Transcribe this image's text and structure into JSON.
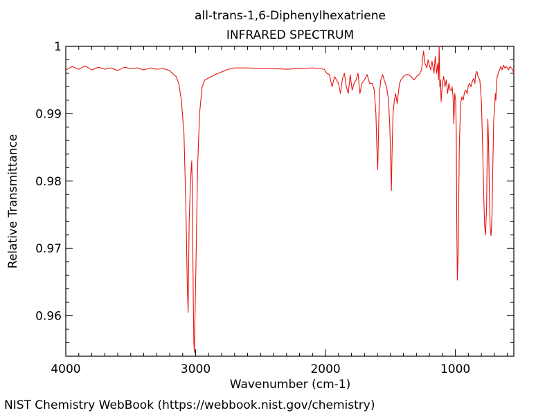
{
  "chart_data": {
    "type": "line",
    "title": "all-trans-1,6-Diphenylhexatriene",
    "subtitle": "INFRARED SPECTRUM",
    "xlabel": "Wavenumber (cm-1)",
    "ylabel": "Relative Transmittance",
    "xlim": [
      4000,
      550
    ],
    "ylim": [
      0.954,
      1.0
    ],
    "x_reversed": true,
    "grid": false,
    "line_color": "#e8120c",
    "x_ticks": [
      {
        "value": 4000,
        "label": "4000"
      },
      {
        "value": 3000,
        "label": "3000"
      },
      {
        "value": 2000,
        "label": "2000"
      },
      {
        "value": 1000,
        "label": "1000"
      }
    ],
    "y_ticks": [
      {
        "value": 1.0,
        "label": "1"
      },
      {
        "value": 0.99,
        "label": "0.99"
      },
      {
        "value": 0.98,
        "label": "0.98"
      },
      {
        "value": 0.97,
        "label": "0.97"
      },
      {
        "value": 0.96,
        "label": "0.96"
      }
    ],
    "series": [
      {
        "x": [
          4000,
          3950,
          3900,
          3850,
          3800,
          3750,
          3700,
          3650,
          3600,
          3550,
          3500,
          3450,
          3400,
          3350,
          3300,
          3250,
          3200,
          3180,
          3150,
          3130,
          3110,
          3090,
          3075,
          3065,
          3058,
          3050,
          3040,
          3030,
          3026,
          3022,
          3018,
          3014,
          3010,
          3000,
          2985,
          2970,
          2950,
          2930,
          2900,
          2850,
          2800,
          2750,
          2700,
          2600,
          2500,
          2400,
          2300,
          2200,
          2100,
          2050,
          2010,
          1990,
          1970,
          1950,
          1930,
          1915,
          1900,
          1885,
          1870,
          1855,
          1840,
          1825,
          1810,
          1795,
          1780,
          1765,
          1750,
          1735,
          1720,
          1700,
          1680,
          1660,
          1640,
          1625,
          1612,
          1605,
          1598,
          1592,
          1585,
          1575,
          1560,
          1545,
          1530,
          1515,
          1505,
          1498,
          1493,
          1488,
          1480,
          1470,
          1460,
          1448,
          1440,
          1430,
          1420,
          1400,
          1380,
          1360,
          1340,
          1320,
          1300,
          1280,
          1260,
          1250,
          1245,
          1235,
          1220,
          1210,
          1200,
          1190,
          1180,
          1165,
          1155,
          1145,
          1135,
          1130,
          1125,
          1120,
          1115,
          1110,
          1100,
          1090,
          1080,
          1070,
          1060,
          1050,
          1040,
          1030,
          1025,
          1018,
          1012,
          1005,
          998,
          993,
          990,
          985,
          978,
          970,
          960,
          950,
          940,
          930,
          920,
          910,
          900,
          890,
          880,
          870,
          860,
          850,
          845,
          835,
          825,
          812,
          800,
          790,
          782,
          775,
          768,
          760,
          755,
          750,
          745,
          738,
          732,
          725,
          718,
          711,
          705,
          698,
          692,
          688,
          684,
          678,
          670,
          660,
          650,
          640,
          630,
          620,
          610,
          600,
          590,
          580,
          570,
          560,
          550
        ],
        "y": [
          0.9965,
          0.997,
          0.9966,
          0.9971,
          0.9965,
          0.9969,
          0.9966,
          0.9968,
          0.9964,
          0.9969,
          0.9967,
          0.9968,
          0.9965,
          0.9968,
          0.9966,
          0.9967,
          0.9964,
          0.996,
          0.9955,
          0.9945,
          0.992,
          0.987,
          0.976,
          0.965,
          0.9605,
          0.974,
          0.98,
          0.983,
          0.979,
          0.97,
          0.962,
          0.956,
          0.9545,
          0.965,
          0.982,
          0.99,
          0.994,
          0.995,
          0.9953,
          0.9958,
          0.9962,
          0.9966,
          0.9968,
          0.9968,
          0.9967,
          0.9967,
          0.9966,
          0.9967,
          0.9968,
          0.9967,
          0.9966,
          0.996,
          0.9958,
          0.994,
          0.9955,
          0.995,
          0.9945,
          0.993,
          0.9952,
          0.996,
          0.994,
          0.993,
          0.9958,
          0.9935,
          0.9945,
          0.995,
          0.996,
          0.993,
          0.9945,
          0.995,
          0.9958,
          0.9945,
          0.9945,
          0.9935,
          0.99,
          0.985,
          0.9817,
          0.987,
          0.993,
          0.995,
          0.9958,
          0.9948,
          0.994,
          0.992,
          0.988,
          0.983,
          0.9786,
          0.984,
          0.99,
          0.992,
          0.993,
          0.9915,
          0.993,
          0.9945,
          0.995,
          0.9955,
          0.9958,
          0.9958,
          0.9955,
          0.995,
          0.9955,
          0.9958,
          0.9965,
          0.9985,
          0.9993,
          0.9975,
          0.9968,
          0.998,
          0.9972,
          0.9965,
          0.9978,
          0.996,
          0.9985,
          0.996,
          0.9975,
          0.995,
          1.0,
          0.994,
          0.995,
          0.9918,
          0.9945,
          0.9955,
          0.994,
          0.995,
          0.993,
          0.9945,
          0.9935,
          0.9935,
          0.994,
          0.9925,
          0.9885,
          0.993,
          0.992,
          0.987,
          0.975,
          0.9653,
          0.97,
          0.985,
          0.9915,
          0.9925,
          0.992,
          0.9932,
          0.9935,
          0.993,
          0.9942,
          0.9945,
          0.994,
          0.9948,
          0.9952,
          0.9945,
          0.9958,
          0.9963,
          0.9955,
          0.995,
          0.992,
          0.985,
          0.978,
          0.9735,
          0.972,
          0.976,
          0.984,
          0.9892,
          0.986,
          0.978,
          0.973,
          0.9719,
          0.975,
          0.983,
          0.989,
          0.991,
          0.993,
          0.992,
          0.9945,
          0.9955,
          0.996,
          0.9965,
          0.997,
          0.9965,
          0.9972,
          0.9968,
          0.997,
          0.9968,
          0.9965,
          0.997,
          0.9968,
          0.9966,
          0.996
        ]
      }
    ]
  },
  "footer": {
    "credit": "NIST Chemistry WebBook (https://webbook.nist.gov/chemistry)"
  }
}
